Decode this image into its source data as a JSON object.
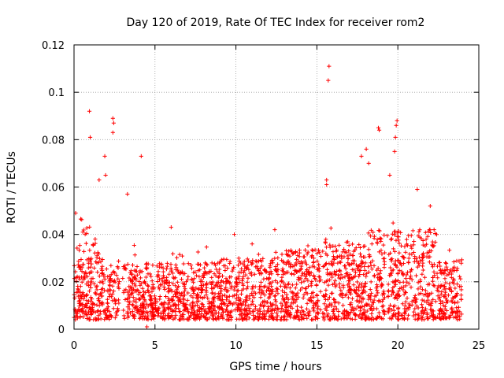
{
  "chart_data": {
    "type": "scatter",
    "title": "Day 120 of 2019, Rate Of TEC Index for receiver rom2",
    "xlabel": "GPS time / hours",
    "ylabel": "ROTI / TECUs",
    "xlim": [
      0,
      25
    ],
    "ylim": [
      0,
      0.12
    ],
    "xticks": [
      0,
      5,
      10,
      15,
      20,
      25
    ],
    "xtick_labels": [
      "0",
      "5",
      "10",
      "15",
      "20",
      "25"
    ],
    "yticks": [
      0,
      0.02,
      0.04,
      0.06,
      0.08,
      0.1,
      0.12
    ],
    "ytick_labels": [
      "0",
      "0.02",
      "0.04",
      "0.06",
      "0.08",
      "0.1",
      "0.12"
    ],
    "grid": true,
    "marker": "+",
    "color": "#ff0000",
    "series": [
      {
        "name": "ROTI",
        "data_range": [
          0,
          23.95
        ],
        "notable_points": [
          {
            "x": 0.95,
            "y": 0.092
          },
          {
            "x": 1.0,
            "y": 0.081
          },
          {
            "x": 2.4,
            "y": 0.089
          },
          {
            "x": 2.45,
            "y": 0.087
          },
          {
            "x": 2.4,
            "y": 0.083
          },
          {
            "x": 4.15,
            "y": 0.073
          },
          {
            "x": 1.9,
            "y": 0.073
          },
          {
            "x": 0.1,
            "y": 0.049
          },
          {
            "x": 1.55,
            "y": 0.063
          },
          {
            "x": 1.95,
            "y": 0.065
          },
          {
            "x": 3.3,
            "y": 0.057
          },
          {
            "x": 15.75,
            "y": 0.111
          },
          {
            "x": 15.7,
            "y": 0.105
          },
          {
            "x": 15.6,
            "y": 0.063
          },
          {
            "x": 15.6,
            "y": 0.061
          },
          {
            "x": 18.05,
            "y": 0.076
          },
          {
            "x": 18.8,
            "y": 0.085
          },
          {
            "x": 18.85,
            "y": 0.084
          },
          {
            "x": 19.95,
            "y": 0.088
          },
          {
            "x": 19.9,
            "y": 0.086
          },
          {
            "x": 19.85,
            "y": 0.081
          },
          {
            "x": 19.8,
            "y": 0.075
          },
          {
            "x": 17.75,
            "y": 0.073
          },
          {
            "x": 18.2,
            "y": 0.07
          },
          {
            "x": 19.5,
            "y": 0.065
          },
          {
            "x": 21.2,
            "y": 0.059
          },
          {
            "x": 22.0,
            "y": 0.052
          },
          {
            "x": 12.4,
            "y": 0.042
          },
          {
            "x": 11.0,
            "y": 0.036
          },
          {
            "x": 9.9,
            "y": 0.04
          },
          {
            "x": 6.0,
            "y": 0.043
          },
          {
            "x": 4.5,
            "y": 0.001
          }
        ]
      }
    ]
  }
}
